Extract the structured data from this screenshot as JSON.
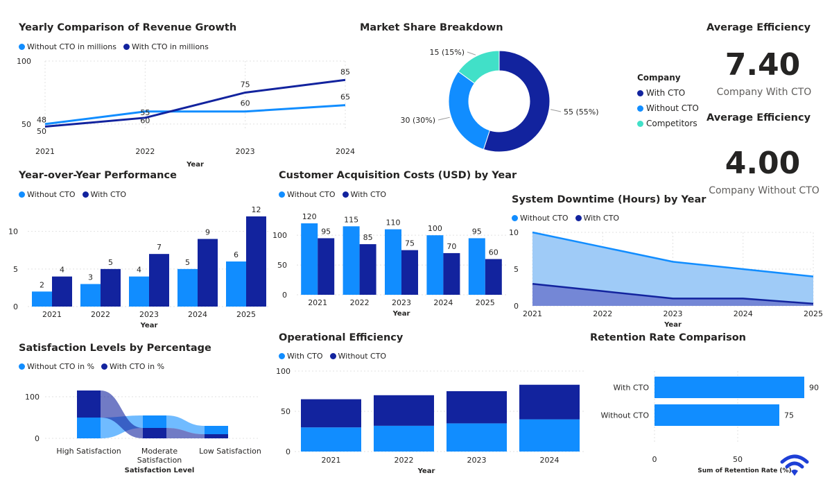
{
  "colors": {
    "light": "#118DFF",
    "dark": "#12239E",
    "teal": "#41E0C8",
    "area_light": "#9FCBF7",
    "area_dark": "#6F80D2",
    "grid": "#E1E1E1",
    "axis_text": "#252423"
  },
  "revenue": {
    "title": "Yearly Comparison of Revenue Growth",
    "legend": [
      "Without CTO in millions",
      "With CTO in millions"
    ]
  },
  "market": {
    "title": "Market Share Breakdown",
    "legend_title": "Company",
    "legend": [
      "With CTO",
      "Without CTO",
      "Competitors"
    ]
  },
  "kpi1": {
    "title": "Average Efficiency",
    "value": "7.40",
    "caption": "Company With CTO"
  },
  "kpi2": {
    "title": "Average Efficiency",
    "value": "4.00",
    "caption": "Company Without CTO"
  },
  "yoy": {
    "title": "Year-over-Year Performance",
    "legend": [
      "Without CTO",
      "With CTO"
    ]
  },
  "cac": {
    "title": "Customer Acquisition Costs (USD) by Year",
    "legend": [
      "Without CTO",
      "With CTO"
    ]
  },
  "downtime": {
    "title": "System Downtime (Hours) by Year",
    "legend": [
      "Without CTO",
      "With CTO"
    ]
  },
  "satisfaction": {
    "title": "Satisfaction Levels by Percentage",
    "legend": [
      "Without CTO in %",
      "With CTO in %"
    ]
  },
  "opeff": {
    "title": "Operational Efficiency",
    "legend": [
      "With CTO",
      "Without CTO"
    ]
  },
  "retention": {
    "title": "Retention Rate Comparison"
  },
  "logo": {
    "name": "wifi-shield-logo"
  },
  "chart_data": [
    {
      "id": "revenue",
      "type": "line",
      "title": "Yearly Comparison of Revenue Growth",
      "x": [
        "2021",
        "2022",
        "2023",
        "2024"
      ],
      "xlabel": "Year",
      "ylabel": "",
      "yticks": [
        50,
        100
      ],
      "ylim": [
        45,
        100
      ],
      "series": [
        {
          "name": "Without CTO in millions",
          "values": [
            50,
            60,
            60,
            65
          ],
          "labels": [
            "50",
            "60",
            "60",
            "65"
          ]
        },
        {
          "name": "With CTO in millions",
          "values": [
            48,
            55,
            75,
            85
          ],
          "labels": [
            "48",
            "55",
            "75",
            "85"
          ]
        }
      ]
    },
    {
      "id": "market",
      "type": "pie",
      "title": "Market Share Breakdown",
      "categories": [
        "With CTO",
        "Without CTO",
        "Competitors"
      ],
      "values": [
        55,
        30,
        15
      ],
      "labels": [
        "55 (55%)",
        "30 (30%)",
        "15 (15%)"
      ]
    },
    {
      "id": "yoy",
      "type": "bar",
      "title": "Year-over-Year Performance",
      "categories": [
        "2021",
        "2022",
        "2023",
        "2024",
        "2025"
      ],
      "xlabel": "Year",
      "yticks": [
        0,
        5,
        10
      ],
      "ylim": [
        0,
        12
      ],
      "series": [
        {
          "name": "Without CTO",
          "values": [
            2,
            3,
            4,
            5,
            6
          ]
        },
        {
          "name": "With CTO",
          "values": [
            4,
            5,
            7,
            9,
            12
          ]
        }
      ]
    },
    {
      "id": "cac",
      "type": "bar",
      "title": "Customer Acquisition Costs (USD) by Year",
      "categories": [
        "2021",
        "2022",
        "2023",
        "2024",
        "2025"
      ],
      "xlabel": "Year",
      "yticks": [
        0,
        50,
        100
      ],
      "ylim": [
        0,
        120
      ],
      "series": [
        {
          "name": "Without CTO",
          "values": [
            120,
            115,
            110,
            100,
            95
          ]
        },
        {
          "name": "With CTO",
          "values": [
            95,
            85,
            75,
            70,
            60
          ]
        }
      ]
    },
    {
      "id": "downtime",
      "type": "area",
      "title": "System Downtime (Hours) by Year",
      "x": [
        "2021",
        "2022",
        "2023",
        "2024",
        "2025"
      ],
      "xlabel": "Year",
      "yticks": [
        0,
        5,
        10
      ],
      "ylim": [
        0,
        10
      ],
      "series": [
        {
          "name": "Without CTO",
          "values": [
            10,
            8,
            6,
            5,
            4
          ]
        },
        {
          "name": "With CTO",
          "values": [
            3,
            2,
            1,
            1,
            0.3
          ]
        }
      ]
    },
    {
      "id": "satisfaction",
      "type": "ribbon",
      "title": "Satisfaction Levels by Percentage",
      "categories": [
        "High Satisfaction",
        "Moderate Satisfaction",
        "Low Satisfaction"
      ],
      "xlabel": "Satisfaction Level",
      "yticks": [
        0,
        100
      ],
      "ylim": [
        0,
        120
      ],
      "series": [
        {
          "name": "Without CTO in %",
          "values": [
            50,
            30,
            20
          ]
        },
        {
          "name": "With CTO in %",
          "values": [
            65,
            25,
            10
          ]
        }
      ]
    },
    {
      "id": "opeff",
      "type": "bar",
      "stacked": true,
      "title": "Operational Efficiency",
      "categories": [
        "2021",
        "2022",
        "2023",
        "2024"
      ],
      "xlabel": "Year",
      "yticks": [
        0,
        50,
        100
      ],
      "ylim": [
        0,
        100
      ],
      "series": [
        {
          "name": "With CTO",
          "values": [
            30,
            32,
            35,
            40
          ]
        },
        {
          "name": "Without CTO",
          "values": [
            35,
            38,
            40,
            43
          ]
        }
      ]
    },
    {
      "id": "retention",
      "type": "bar",
      "orientation": "horizontal",
      "title": "Retention Rate Comparison",
      "categories": [
        "With CTO",
        "Without CTO"
      ],
      "values": [
        90,
        75
      ],
      "xlabel": "Sum of Retention Rate (%)",
      "xticks": [
        0,
        50
      ],
      "xlim": [
        0,
        100
      ]
    }
  ]
}
